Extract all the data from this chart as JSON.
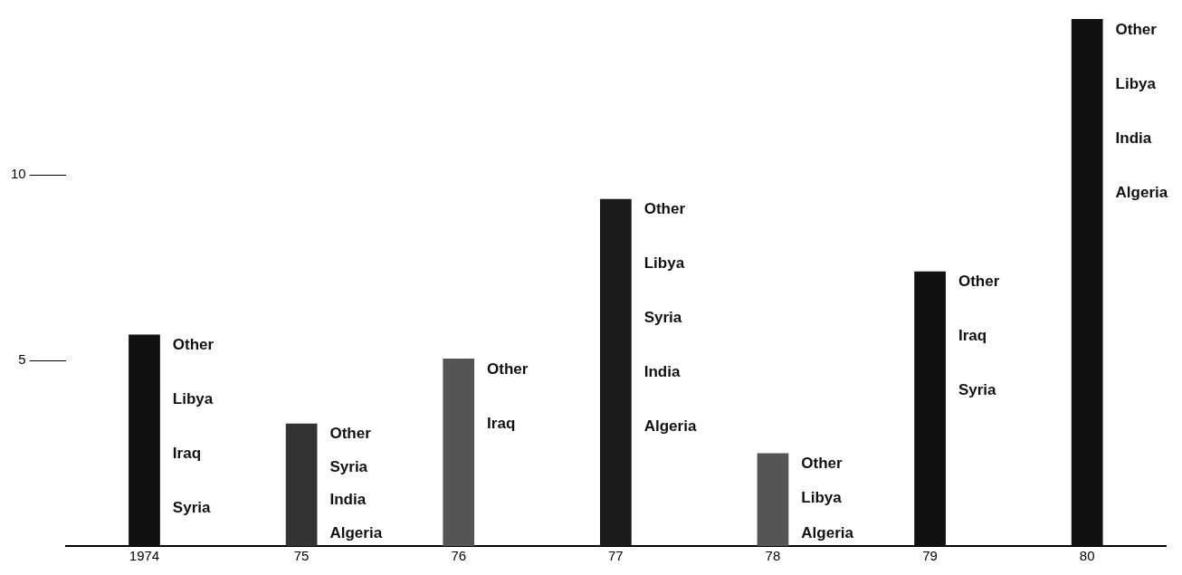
{
  "chart_data": {
    "type": "bar",
    "categories": [
      "1974",
      "75",
      "76",
      "77",
      "78",
      "79",
      "80"
    ],
    "values": [
      5.7,
      3.3,
      5.05,
      9.35,
      2.5,
      7.4,
      14.2
    ],
    "colors": [
      "#111111",
      "#333333",
      "#555555",
      "#1a1a1a",
      "#555555",
      "#111111",
      "#111111"
    ],
    "ylim": [
      0,
      14.2
    ],
    "yticks": [
      5,
      10
    ],
    "grid": false,
    "legend": false,
    "annotations": [
      "Other\nLibya\nIraq\nSyria",
      "Other\nSyria\nIndia\nAlgeria",
      "Other\nIraq",
      "Other\nLibya\nSyria\nIndia\nAlgeria",
      "Other\nLibya\nAlgeria",
      "Other\nIraq\nSyria",
      "Other\nLibya\nIndia\nAlgeria"
    ]
  }
}
